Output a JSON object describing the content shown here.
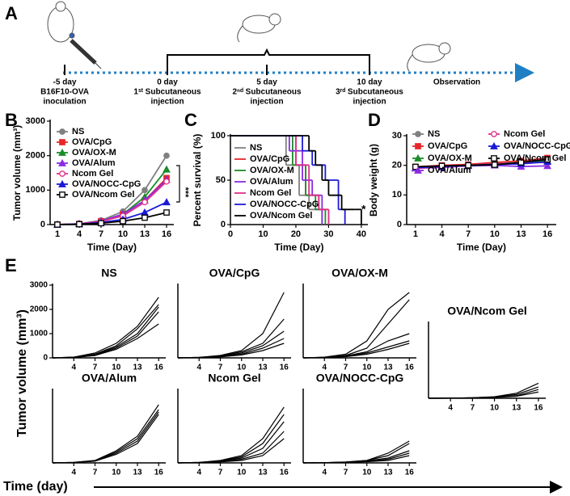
{
  "timeline": {
    "label": "A",
    "events": [
      {
        "day": "-5 day",
        "text": [
          "B16F10-OVA",
          "inoculation"
        ]
      },
      {
        "day": "0 day",
        "text": [
          "1ˢᵗ Subcutaneous",
          "injection"
        ]
      },
      {
        "day": "5 day",
        "text": [
          "2ⁿᵈ Subcutaneous",
          "injection"
        ]
      },
      {
        "day": "10 day",
        "text": [
          "3ʳᵈ Subcutaneous",
          "injection"
        ]
      },
      {
        "day": "Observation"
      }
    ]
  },
  "figure_e": {
    "label": "E",
    "y_label": "Tumor volume (mm³)",
    "x_label": "Time (day)"
  },
  "chart_data": [
    {
      "type": "line",
      "label": "B",
      "x": [
        1,
        4,
        7,
        10,
        13,
        16
      ],
      "xlim": [
        0,
        17
      ],
      "xticks": [
        1,
        4,
        7,
        10,
        13,
        16
      ],
      "ylim": [
        0,
        3000
      ],
      "yticks": [
        0,
        1000,
        2000,
        3000
      ],
      "x_label": "Time (Day)",
      "y_label": "Tumor volume (mm³)",
      "annotation": "***",
      "series": [
        {
          "name": "NS",
          "color": "#808080",
          "marker": "circle",
          "values": [
            0,
            20,
            120,
            380,
            1000,
            2000
          ]
        },
        {
          "name": "OVA/CpG",
          "color": "#e8262a",
          "marker": "square",
          "values": [
            0,
            20,
            100,
            300,
            700,
            1350
          ]
        },
        {
          "name": "OVA/OX-M",
          "color": "#1a8c2a",
          "marker": "triangle",
          "values": [
            0,
            20,
            100,
            300,
            800,
            1600
          ]
        },
        {
          "name": "OVA/Alum",
          "color": "#8a2be2",
          "marker": "triangle",
          "values": [
            0,
            20,
            100,
            300,
            700,
            1300
          ]
        },
        {
          "name": "Ncom Gel",
          "color": "#e0308a",
          "marker": "open-circle",
          "values": [
            0,
            20,
            90,
            250,
            650,
            1250
          ]
        },
        {
          "name": "OVA/NOCC-CpG",
          "color": "#1a1ad6",
          "marker": "triangle",
          "values": [
            0,
            15,
            60,
            150,
            350,
            650
          ]
        },
        {
          "name": "OVA/Ncom Gel",
          "color": "#000000",
          "marker": "open-square",
          "values": [
            0,
            10,
            40,
            100,
            200,
            350
          ]
        }
      ]
    },
    {
      "type": "step",
      "label": "C",
      "xlim": [
        0,
        42
      ],
      "xticks": [
        0,
        10,
        20,
        30,
        40
      ],
      "ylim": [
        0,
        100
      ],
      "yticks": [
        0,
        50,
        100
      ],
      "x_label": "Time (Day)",
      "y_label": "Percent survival (%)",
      "annotation": "*",
      "series": [
        {
          "name": "NS",
          "color": "#808080",
          "x": [
            0,
            17,
            21,
            24,
            28
          ],
          "values": [
            100,
            67,
            33,
            17,
            0
          ]
        },
        {
          "name": "OVA/CpG",
          "color": "#e8262a",
          "x": [
            0,
            20,
            23,
            27,
            30
          ],
          "values": [
            100,
            67,
            33,
            17,
            0
          ]
        },
        {
          "name": "OVA/OX-M",
          "color": "#1a8c2a",
          "x": [
            0,
            19,
            23,
            26,
            29
          ],
          "values": [
            100,
            67,
            33,
            17,
            0
          ]
        },
        {
          "name": "OVA/Alum",
          "color": "#8a2be2",
          "x": [
            0,
            18,
            22,
            25,
            28
          ],
          "values": [
            100,
            83,
            50,
            33,
            0
          ]
        },
        {
          "name": "Ncom Gel",
          "color": "#e0308a",
          "x": [
            0,
            20,
            24,
            27,
            30
          ],
          "values": [
            100,
            67,
            33,
            17,
            0
          ]
        },
        {
          "name": "OVA/NOCC-CpG",
          "color": "#1a1ad6",
          "x": [
            0,
            22,
            25,
            29,
            33,
            35
          ],
          "values": [
            100,
            83,
            67,
            50,
            17,
            0
          ]
        },
        {
          "name": "OVA/Ncom Gel",
          "color": "#000000",
          "x": [
            0,
            24,
            26,
            28,
            30,
            34,
            38,
            40
          ],
          "values": [
            100,
            83,
            67,
            50,
            33,
            17,
            17,
            0
          ]
        }
      ]
    },
    {
      "type": "line",
      "label": "D",
      "x": [
        1,
        4,
        7,
        10,
        13,
        16
      ],
      "xlim": [
        0,
        17
      ],
      "xticks": [
        1,
        4,
        7,
        10,
        13,
        16
      ],
      "ylim": [
        0,
        30
      ],
      "yticks": [
        0,
        10,
        20,
        30
      ],
      "x_label": "Time (Day)",
      "y_label": "Body weight (g)",
      "series": [
        {
          "name": "NS",
          "color": "#808080",
          "marker": "circle",
          "values": [
            19.5,
            19.8,
            20.2,
            20.5,
            21,
            22
          ]
        },
        {
          "name": "OVA/CpG",
          "color": "#e8262a",
          "marker": "square",
          "values": [
            19.5,
            20,
            20.3,
            21,
            21.5,
            22.5
          ]
        },
        {
          "name": "OVA/OX-M",
          "color": "#1a8c2a",
          "marker": "triangle",
          "values": [
            19,
            19.5,
            20,
            20.5,
            20.8,
            21.5
          ]
        },
        {
          "name": "OVA/Alum",
          "color": "#8a2be2",
          "marker": "triangle",
          "values": [
            19,
            19.3,
            19.8,
            20,
            19.6,
            19.8
          ]
        },
        {
          "name": "Ncom Gel",
          "color": "#e0308a",
          "marker": "open-circle",
          "values": [
            19,
            19.5,
            20,
            20.5,
            20.8,
            21
          ]
        },
        {
          "name": "OVA/NOCC-CpG",
          "color": "#1a1ad6",
          "marker": "triangle",
          "values": [
            19.2,
            19.6,
            20,
            20.3,
            20.5,
            21.2
          ]
        },
        {
          "name": "OVA/Ncom Gel",
          "color": "#000000",
          "marker": "open-square",
          "values": [
            19.5,
            19.8,
            20,
            20.2,
            21,
            22
          ]
        }
      ]
    },
    {
      "type": "line",
      "title": "NS",
      "x": [
        1,
        4,
        7,
        10,
        13,
        16
      ],
      "xlim": [
        1,
        17
      ],
      "xticks": [
        4,
        7,
        10,
        13,
        16
      ],
      "ylim": [
        0,
        3000
      ],
      "yticks": [
        0,
        1000,
        2000,
        3000
      ],
      "color": "#000000",
      "series": [
        {
          "values": [
            0,
            30,
            200,
            600,
            1300,
            2500
          ]
        },
        {
          "values": [
            0,
            30,
            150,
            500,
            1200,
            2200
          ]
        },
        {
          "values": [
            0,
            20,
            120,
            450,
            1000,
            2100
          ]
        },
        {
          "values": [
            0,
            20,
            100,
            400,
            900,
            1900
          ]
        },
        {
          "values": [
            0,
            15,
            100,
            350,
            800,
            1400
          ]
        }
      ]
    },
    {
      "type": "line",
      "title": "OVA/CpG",
      "x": [
        1,
        4,
        7,
        10,
        13,
        16
      ],
      "xlim": [
        1,
        17
      ],
      "xticks": [
        4,
        7,
        10,
        13,
        16
      ],
      "ylim": [
        0,
        3000
      ],
      "color": "#000000",
      "series": [
        {
          "values": [
            0,
            20,
            100,
            300,
            1000,
            2700
          ]
        },
        {
          "values": [
            0,
            20,
            80,
            250,
            600,
            1600
          ]
        },
        {
          "values": [
            0,
            15,
            60,
            200,
            500,
            1100
          ]
        },
        {
          "values": [
            0,
            15,
            50,
            150,
            400,
            800
          ]
        },
        {
          "values": [
            0,
            10,
            40,
            120,
            300,
            600
          ]
        }
      ]
    },
    {
      "type": "line",
      "title": "OVA/OX-M",
      "x": [
        1,
        4,
        7,
        10,
        13,
        16
      ],
      "xlim": [
        1,
        17
      ],
      "xticks": [
        4,
        7,
        10,
        13,
        16
      ],
      "ylim": [
        0,
        3000
      ],
      "color": "#000000",
      "series": [
        {
          "values": [
            0,
            30,
            150,
            700,
            2000,
            2700
          ]
        },
        {
          "values": [
            0,
            20,
            100,
            400,
            1400,
            2400
          ]
        },
        {
          "values": [
            0,
            20,
            80,
            250,
            700,
            1000
          ]
        },
        {
          "values": [
            0,
            15,
            60,
            200,
            450,
            700
          ]
        },
        {
          "values": [
            0,
            10,
            50,
            150,
            350,
            600
          ]
        }
      ]
    },
    {
      "type": "line",
      "title": "OVA/Alum",
      "x": [
        1,
        4,
        7,
        10,
        13,
        16
      ],
      "xlim": [
        1,
        17
      ],
      "xticks": [
        4,
        7,
        10,
        13,
        16
      ],
      "ylim": [
        0,
        3000
      ],
      "color": "#000000",
      "series": [
        {
          "values": [
            0,
            20,
            100,
            500,
            1100,
            2400
          ]
        },
        {
          "values": [
            0,
            20,
            90,
            450,
            1000,
            2200
          ]
        },
        {
          "values": [
            0,
            15,
            80,
            400,
            900,
            2100
          ]
        },
        {
          "values": [
            0,
            15,
            70,
            350,
            800,
            2000
          ]
        }
      ]
    },
    {
      "type": "line",
      "title": "Ncom Gel",
      "x": [
        1,
        4,
        7,
        10,
        13,
        16
      ],
      "xlim": [
        1,
        17
      ],
      "xticks": [
        4,
        7,
        10,
        13,
        16
      ],
      "ylim": [
        0,
        3000
      ],
      "color": "#000000",
      "series": [
        {
          "values": [
            0,
            20,
            100,
            300,
            1000,
            2300
          ]
        },
        {
          "values": [
            0,
            20,
            80,
            250,
            800,
            2000
          ]
        },
        {
          "values": [
            0,
            15,
            60,
            200,
            600,
            1700
          ]
        },
        {
          "values": [
            0,
            10,
            50,
            150,
            400,
            1300
          ]
        },
        {
          "values": [
            0,
            10,
            40,
            100,
            300,
            1000
          ]
        }
      ]
    },
    {
      "type": "line",
      "title": "OVA/NOCC-CpG",
      "x": [
        1,
        4,
        7,
        10,
        13,
        16
      ],
      "xlim": [
        1,
        17
      ],
      "xticks": [
        4,
        7,
        10,
        13,
        16
      ],
      "ylim": [
        0,
        3000
      ],
      "color": "#000000",
      "series": [
        {
          "values": [
            0,
            10,
            40,
            100,
            400,
            900
          ]
        },
        {
          "values": [
            0,
            10,
            30,
            100,
            300,
            800
          ]
        },
        {
          "values": [
            0,
            10,
            30,
            80,
            200,
            500
          ]
        },
        {
          "values": [
            0,
            5,
            20,
            60,
            150,
            400
          ]
        },
        {
          "values": [
            0,
            5,
            20,
            50,
            100,
            300
          ]
        }
      ]
    },
    {
      "type": "line",
      "title": "OVA/Ncom Gel",
      "x": [
        1,
        4,
        7,
        10,
        13,
        16
      ],
      "xlim": [
        1,
        17
      ],
      "xticks": [
        4,
        7,
        10,
        13,
        16
      ],
      "ylim": [
        0,
        3000
      ],
      "color": "#000000",
      "series": [
        {
          "values": [
            0,
            5,
            20,
            60,
            200,
            600
          ]
        },
        {
          "values": [
            0,
            5,
            20,
            50,
            150,
            450
          ]
        },
        {
          "values": [
            0,
            5,
            15,
            40,
            100,
            350
          ]
        },
        {
          "values": [
            0,
            5,
            10,
            30,
            80,
            250
          ]
        }
      ]
    }
  ]
}
